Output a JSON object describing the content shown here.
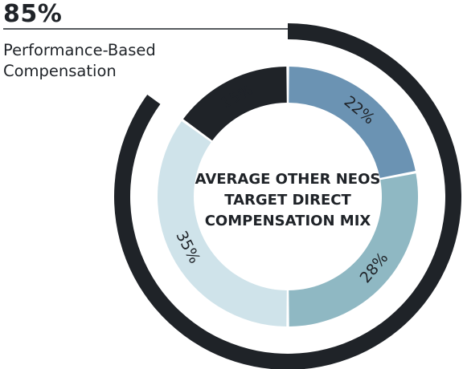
{
  "headline": {
    "value": "85%",
    "caption_line1": "Performance-Based",
    "caption_line2": "Compensation"
  },
  "chart_data": {
    "type": "pie",
    "title_lines": [
      "AVERAGE OTHER NEOS",
      "TARGET DIRECT",
      "COMPENSATION MIX"
    ],
    "slices": [
      {
        "label": "22%",
        "value": 22,
        "color": "#6b93b3"
      },
      {
        "label": "28%",
        "value": 28,
        "color": "#8fb8c3"
      },
      {
        "label": "35%",
        "value": 35,
        "color": "#cfe3ea"
      },
      {
        "label": "15%",
        "value": 15,
        "color": "#1f2328"
      }
    ],
    "outer_arc": {
      "value": 85,
      "color": "#1f2328"
    }
  }
}
